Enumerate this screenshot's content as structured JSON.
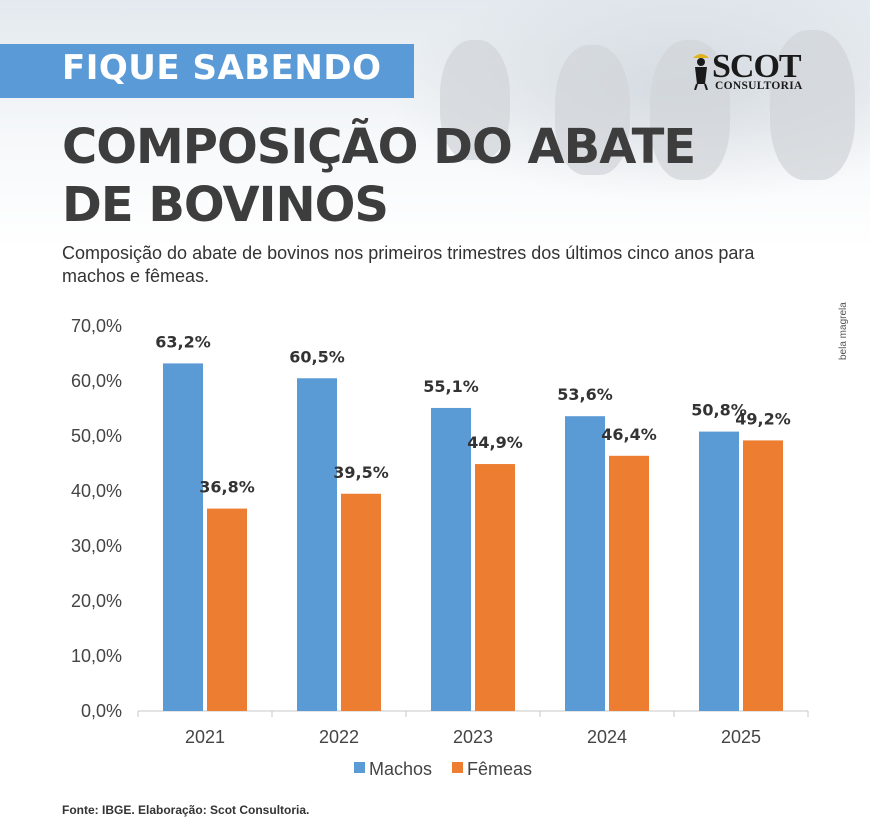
{
  "header": {
    "banner": "FIQUE SABENDO",
    "title_line1": "COMPOSIÇÃO DO ABATE",
    "title_line2": "DE BOVINOS",
    "subtitle": "Composição do abate de bovinos nos primeiros trimestres dos últimos cinco anos para machos e fêmeas.",
    "logo_word": "SCOT",
    "logo_sub": "CONSULTORIA",
    "credit": "bela magrela"
  },
  "footer": {
    "source": "Fonte: IBGE. Elaboração: Scot Consultoria."
  },
  "colors": {
    "banner": "#5a9bd7",
    "machos": "#5b9bd5",
    "femeas": "#ed7d31",
    "title": "#3d3d3d"
  },
  "chart_data": {
    "type": "bar",
    "title": "",
    "xlabel": "",
    "ylabel": "",
    "categories": [
      "2021",
      "2022",
      "2023",
      "2024",
      "2025"
    ],
    "series": [
      {
        "name": "Machos",
        "values": [
          63.2,
          60.5,
          55.1,
          53.6,
          50.8
        ],
        "labels": [
          "63,2%",
          "60,5%",
          "55,1%",
          "53,6%",
          "50,8%"
        ]
      },
      {
        "name": "Fêmeas",
        "values": [
          36.8,
          39.5,
          44.9,
          46.4,
          49.2
        ],
        "labels": [
          "36,8%",
          "39,5%",
          "44,9%",
          "46,4%",
          "49,2%"
        ]
      }
    ],
    "ylim": [
      0,
      70
    ],
    "yticks": [
      "0,0%",
      "10,0%",
      "20,0%",
      "30,0%",
      "40,0%",
      "50,0%",
      "60,0%",
      "70,0%"
    ],
    "grid": false,
    "legend": "bottom"
  }
}
